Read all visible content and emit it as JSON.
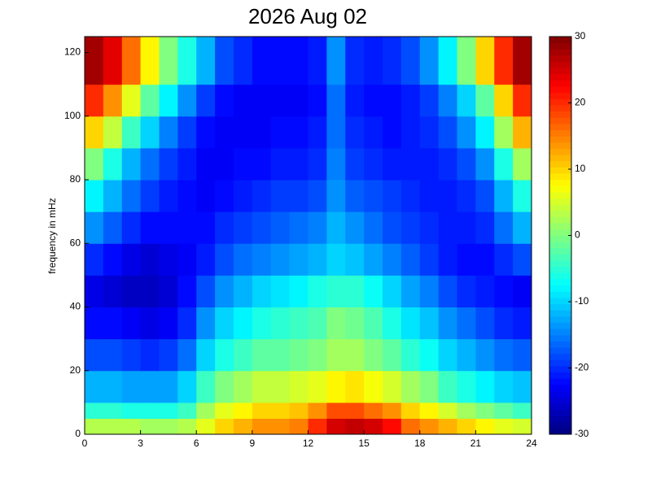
{
  "chart_data": {
    "type": "heatmap",
    "title": "2026 Aug 02",
    "y_label": "frequency in mHz",
    "colormap": "jet",
    "xbins": [
      0,
      1,
      2,
      3,
      4,
      5,
      6,
      7,
      8,
      9,
      10,
      11,
      12,
      13,
      14,
      15,
      16,
      17,
      18,
      19,
      20,
      21,
      22,
      23,
      24
    ],
    "ybins": [
      0,
      5,
      10,
      20,
      30,
      40,
      50,
      60,
      70,
      80,
      90,
      100,
      110,
      125
    ],
    "values": [
      [
        3,
        3,
        3,
        2,
        2,
        3,
        6,
        10,
        12,
        14,
        14,
        15,
        20,
        25,
        26,
        25,
        22,
        16,
        14,
        12,
        10,
        8,
        6,
        5
      ],
      [
        -5,
        -5,
        -6,
        -6,
        -6,
        -4,
        2,
        6,
        8,
        10,
        10,
        11,
        14,
        18,
        18,
        16,
        14,
        10,
        8,
        5,
        2,
        0,
        -2,
        -4
      ],
      [
        -12,
        -12,
        -13,
        -13,
        -13,
        -10,
        -4,
        0,
        2,
        4,
        4,
        5,
        6,
        8,
        9,
        7,
        5,
        2,
        0,
        -4,
        -6,
        -8,
        -10,
        -11
      ],
      [
        -18,
        -18,
        -19,
        -20,
        -19,
        -16,
        -10,
        -6,
        -4,
        -2,
        -2,
        -1,
        0,
        2,
        2,
        0,
        -2,
        -5,
        -7,
        -10,
        -12,
        -14,
        -16,
        -17
      ],
      [
        -22,
        -22,
        -23,
        -24,
        -23,
        -20,
        -14,
        -10,
        -8,
        -6,
        -5,
        -4,
        -3,
        0,
        -1,
        -3,
        -6,
        -9,
        -11,
        -14,
        -16,
        -18,
        -20,
        -21
      ],
      [
        -24,
        -25,
        -26,
        -26,
        -25,
        -22,
        -18,
        -14,
        -12,
        -10,
        -9,
        -8,
        -6,
        -5,
        -5,
        -7,
        -10,
        -13,
        -15,
        -18,
        -20,
        -21,
        -22,
        -23
      ],
      [
        -20,
        -22,
        -24,
        -25,
        -24,
        -23,
        -21,
        -18,
        -16,
        -15,
        -14,
        -13,
        -12,
        -10,
        -11,
        -13,
        -15,
        -17,
        -19,
        -21,
        -22,
        -22,
        -20,
        -18
      ],
      [
        -14,
        -17,
        -20,
        -22,
        -22,
        -22,
        -22,
        -20,
        -19,
        -18,
        -17,
        -16,
        -15,
        -12,
        -14,
        -16,
        -18,
        -19,
        -20,
        -21,
        -21,
        -20,
        -16,
        -12
      ],
      [
        -8,
        -12,
        -16,
        -19,
        -21,
        -22,
        -23,
        -22,
        -21,
        -20,
        -19,
        -19,
        -18,
        -14,
        -17,
        -18,
        -19,
        -20,
        -21,
        -21,
        -20,
        -18,
        -12,
        -6
      ],
      [
        0,
        -6,
        -12,
        -16,
        -19,
        -21,
        -23,
        -23,
        -22,
        -22,
        -21,
        -21,
        -20,
        -15,
        -19,
        -20,
        -21,
        -21,
        -21,
        -20,
        -18,
        -14,
        -6,
        2
      ],
      [
        10,
        4,
        -4,
        -10,
        -15,
        -19,
        -22,
        -23,
        -23,
        -23,
        -22,
        -22,
        -21,
        -16,
        -20,
        -21,
        -22,
        -21,
        -20,
        -18,
        -14,
        -8,
        2,
        12
      ],
      [
        20,
        14,
        6,
        -2,
        -8,
        -14,
        -19,
        -22,
        -23,
        -23,
        -23,
        -23,
        -22,
        -16,
        -21,
        -22,
        -22,
        -21,
        -19,
        -15,
        -10,
        -2,
        10,
        20
      ],
      [
        28,
        24,
        16,
        8,
        0,
        -6,
        -12,
        -18,
        -20,
        -22,
        -22,
        -22,
        -21,
        -14,
        -20,
        -21,
        -20,
        -18,
        -14,
        -8,
        0,
        10,
        20,
        28
      ]
    ],
    "xlim": [
      0,
      24
    ],
    "xticks": [
      0,
      3,
      6,
      9,
      12,
      15,
      18,
      21,
      24
    ],
    "ylim": [
      0,
      125
    ],
    "yticks": [
      0,
      20,
      40,
      60,
      80,
      100,
      120
    ],
    "clim": [
      -30,
      30
    ],
    "cticks": [
      -30,
      -20,
      -10,
      0,
      10,
      20,
      30
    ]
  }
}
